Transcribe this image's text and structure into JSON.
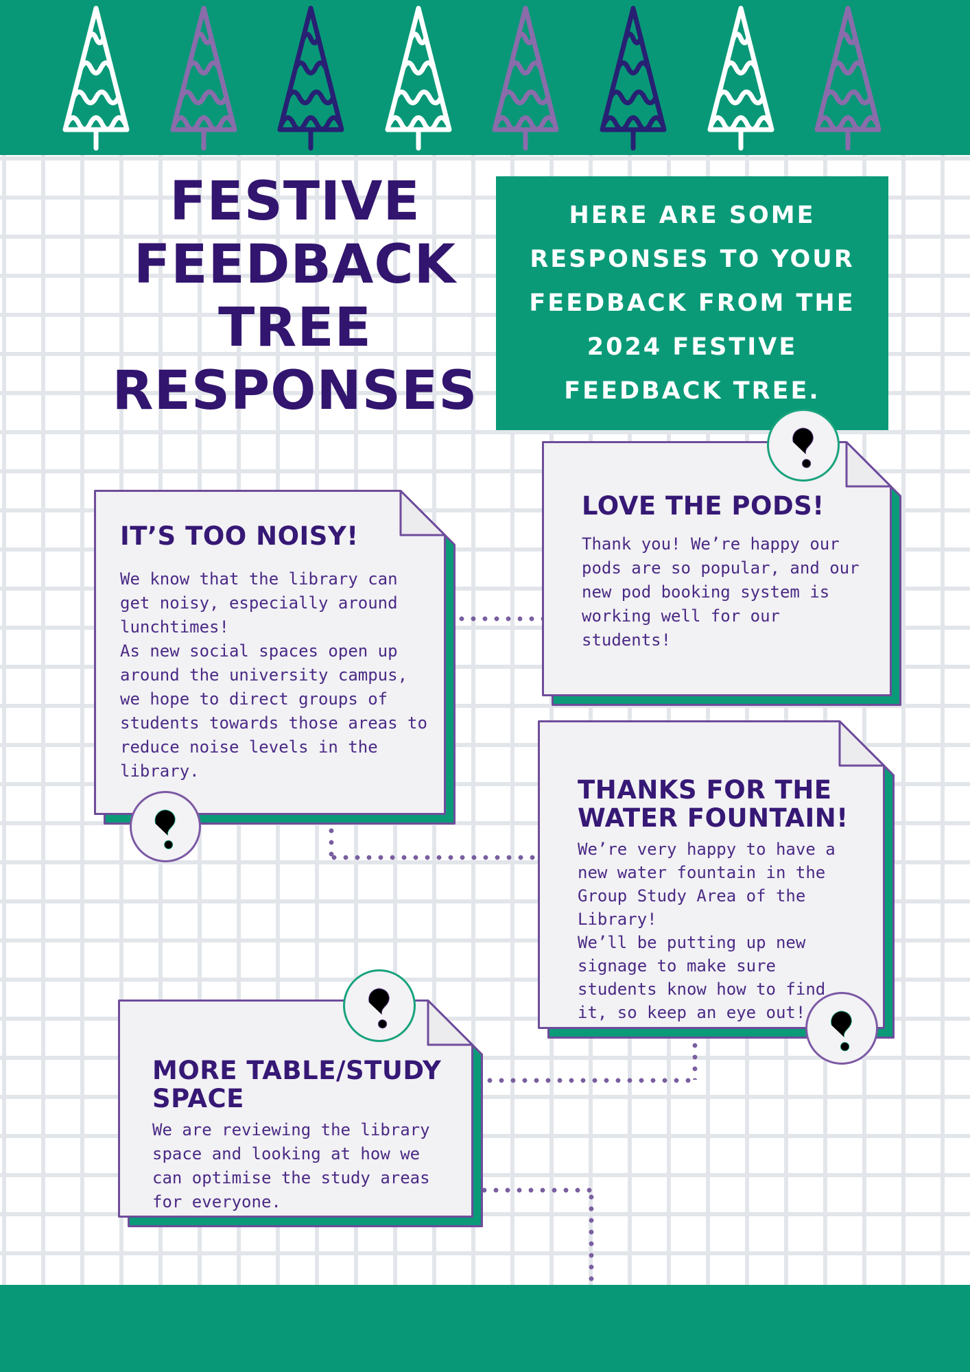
{
  "page": {
    "background": "#ffffff",
    "grid_line_color": "#e2e6ea",
    "green": "#089877",
    "paper_color": "#f2f1f4",
    "border_purple": "#6e4c9b",
    "dot_purple": "#7a5fa0",
    "heading_purple": "#361875",
    "body_purple": "#4a2a85"
  },
  "banner": {
    "trees": [
      {
        "name": "tree-1",
        "hex": "#ffffff"
      },
      {
        "name": "tree-2",
        "hex": "#8a6cab"
      },
      {
        "name": "tree-3",
        "hex": "#272073"
      },
      {
        "name": "tree-4",
        "hex": "#ffffff"
      },
      {
        "name": "tree-5",
        "hex": "#8a6cab"
      },
      {
        "name": "tree-6",
        "hex": "#272073"
      },
      {
        "name": "tree-7",
        "hex": "#ffffff"
      },
      {
        "name": "tree-8",
        "hex": "#8a6cab"
      }
    ]
  },
  "title": {
    "text": "FESTIVE\nFEEDBACK\nTREE\nRESPONSES",
    "color": "#32156e"
  },
  "intro_box": {
    "text": "HERE ARE SOME\nRESPONSES TO YOUR\nFEEDBACK FROM THE\n2024 FESTIVE\nFEEDBACK TREE.",
    "background": "#0a9a78",
    "text_color": "#ffffff"
  },
  "cards": [
    {
      "id": "noisy",
      "heading": "IT’S TOO NOISY!",
      "body": "We know that the library can get noisy, especially around lunchtimes!\nAs new social spaces open up around the university campus, we hope to direct groups of students towards those areas to reduce noise levels in the library."
    },
    {
      "id": "pods",
      "heading": "LOVE THE PODS!",
      "body": "Thank you! We’re happy our pods are so popular, and our new pod booking system is working well for our students!"
    },
    {
      "id": "fountain",
      "heading": "THANKS FOR THE\nWATER FOUNTAIN!",
      "body": "We’re very happy to have a new water fountain in the Group Study Area of the Library!\nWe’ll be putting up new signage to make sure students know how to find it, so keep an eye out!"
    },
    {
      "id": "study",
      "heading": "MORE TABLE/STUDY\nSPACE",
      "body": "We are reviewing the library space and looking at how we can optimise the study areas for everyone."
    }
  ]
}
